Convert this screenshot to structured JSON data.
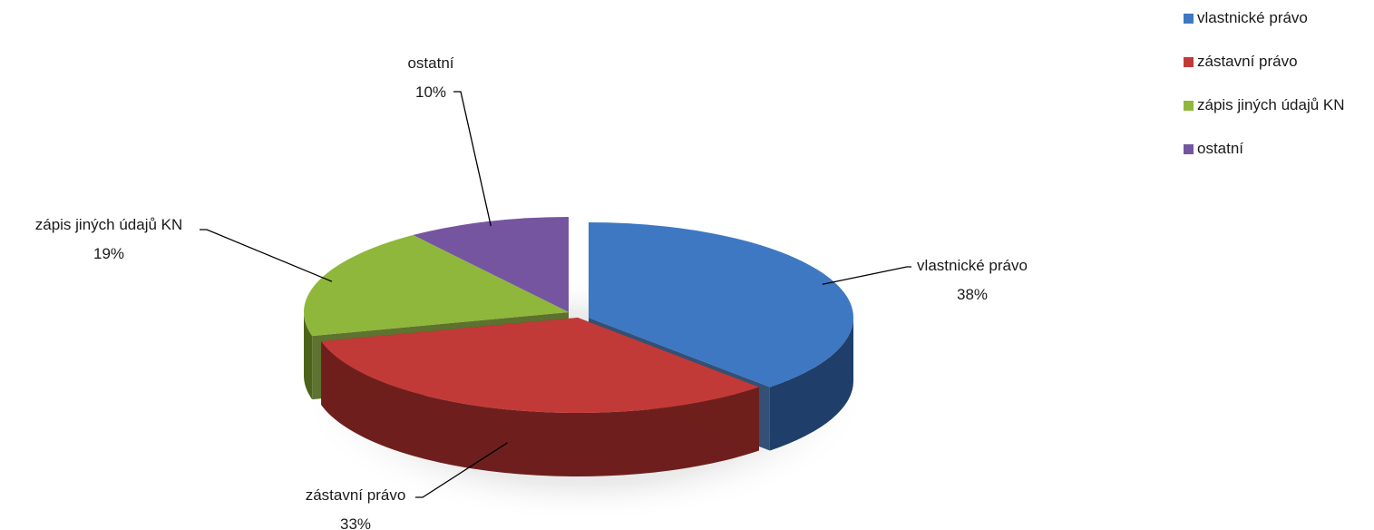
{
  "chart_data": {
    "type": "pie",
    "style": "3d-exploded",
    "slices": [
      {
        "label": "vlastnické právo",
        "value": 38,
        "display": "38%",
        "color": "#3e78c2",
        "dark": "#1f3f6a"
      },
      {
        "label": "zástavní právo",
        "value": 33,
        "display": "33%",
        "color": "#c23a37",
        "dark": "#6e1f1d"
      },
      {
        "label": "zápis jiných údajů KN",
        "value": 19,
        "display": "19%",
        "color": "#8fb73b",
        "dark": "#4c6419"
      },
      {
        "label": "ostatní",
        "value": 10,
        "display": "10%",
        "color": "#7555a0",
        "dark": "#3f2c5a"
      }
    ],
    "legend": {
      "position": "top-right",
      "items": [
        "vlastnické právo",
        "zástavní právo",
        "zápis jiných údajů KN",
        "ostatní"
      ]
    }
  }
}
